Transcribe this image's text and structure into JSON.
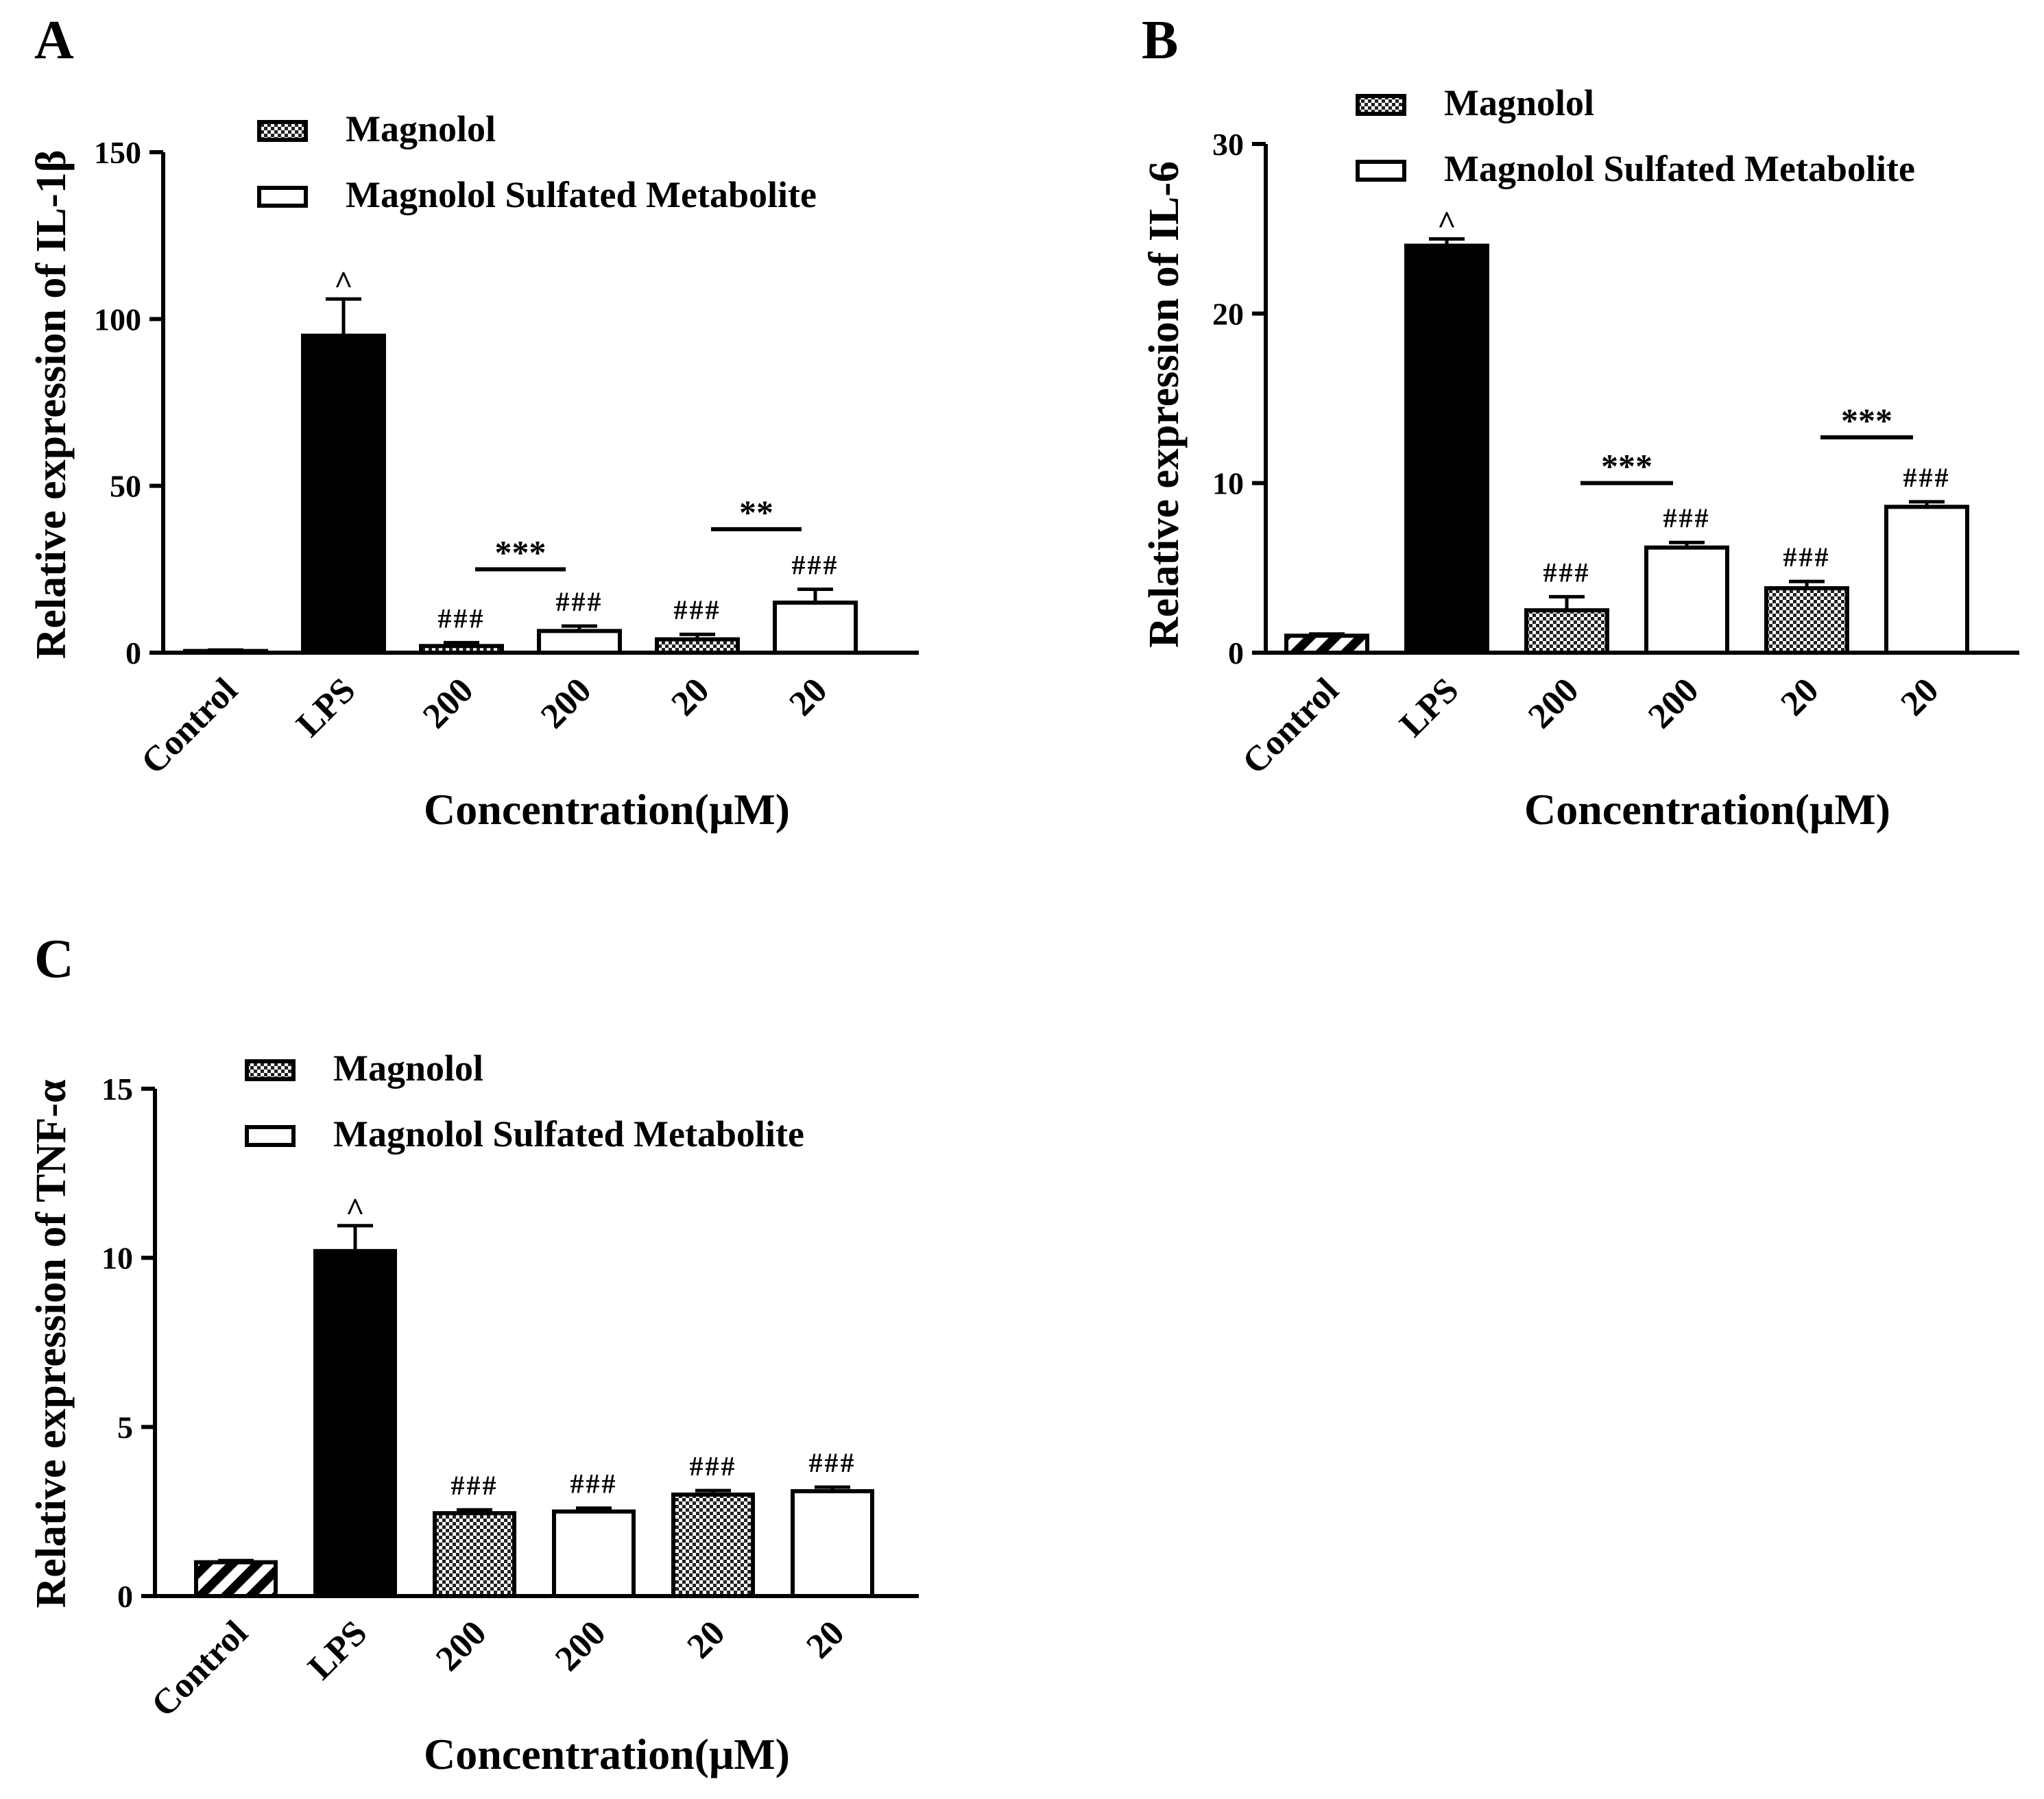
{
  "chart_data": [
    {
      "panel_label": "A",
      "type": "bar",
      "ylabel": "Relative expression of IL-1β",
      "xlabel": "Concentration(μM)",
      "ylim": [
        0,
        150
      ],
      "yticks": [
        "0",
        "50",
        "100",
        "150"
      ],
      "ytick_values": [
        0,
        50,
        100,
        150
      ],
      "categories": [
        "Control",
        "LPS",
        "200",
        "200",
        "20",
        "20"
      ],
      "values": [
        0.5,
        95,
        2,
        6.5,
        4,
        15
      ],
      "errors": [
        0.3,
        11,
        1,
        1.5,
        1.5,
        4
      ],
      "fills": [
        "hatch",
        "black",
        "check",
        "white",
        "check",
        "white"
      ],
      "annotations": [
        "",
        "^",
        "###",
        "###",
        "###",
        "###"
      ],
      "significance": [
        {
          "from": 2,
          "to": 3,
          "y": 25,
          "label": "***"
        },
        {
          "from": 4,
          "to": 5,
          "y": 37,
          "label": "**"
        }
      ],
      "legend": [
        {
          "label": "Magnolol",
          "fill": "check"
        },
        {
          "label": "Magnolol Sulfated Metabolite",
          "fill": "white"
        }
      ]
    },
    {
      "panel_label": "B",
      "type": "bar",
      "ylabel": "Relative expression of IL-6",
      "xlabel": "Concentration(μM)",
      "ylim": [
        0,
        30
      ],
      "yticks": [
        "0",
        "10",
        "20",
        "30"
      ],
      "ytick_values": [
        0,
        10,
        20,
        30
      ],
      "categories": [
        "Control",
        "LPS",
        "200",
        "200",
        "20",
        "20"
      ],
      "values": [
        1,
        24,
        2.5,
        6.2,
        3.8,
        8.6
      ],
      "errors": [
        0.1,
        0.4,
        0.8,
        0.3,
        0.4,
        0.3
      ],
      "fills": [
        "hatch",
        "black",
        "check",
        "white",
        "check",
        "white"
      ],
      "annotations": [
        "",
        "^",
        "###",
        "###",
        "###",
        "###"
      ],
      "significance": [
        {
          "from": 2,
          "to": 3,
          "y": 10,
          "label": "***"
        },
        {
          "from": 4,
          "to": 5,
          "y": 12.7,
          "label": "***"
        }
      ],
      "legend": [
        {
          "label": "Magnolol",
          "fill": "check"
        },
        {
          "label": "Magnolol Sulfated Metabolite",
          "fill": "white"
        }
      ]
    },
    {
      "panel_label": "C",
      "type": "bar",
      "ylabel": "Relative expression of TNF-α",
      "xlabel": "Concentration(μM)",
      "ylim": [
        0,
        15
      ],
      "yticks": [
        "0",
        "5",
        "10",
        "15"
      ],
      "ytick_values": [
        0,
        5,
        10,
        15
      ],
      "categories": [
        "Control",
        "LPS",
        "200",
        "200",
        "20",
        "20"
      ],
      "values": [
        1,
        10.2,
        2.45,
        2.5,
        3,
        3.1
      ],
      "errors": [
        0.05,
        0.75,
        0.1,
        0.1,
        0.12,
        0.12
      ],
      "fills": [
        "hatch",
        "black",
        "check",
        "white",
        "check",
        "white"
      ],
      "annotations": [
        "",
        "^",
        "###",
        "###",
        "###",
        "###"
      ],
      "significance": [],
      "legend": [
        {
          "label": "Magnolol",
          "fill": "check"
        },
        {
          "label": "Magnolol Sulfated Metabolite",
          "fill": "white"
        }
      ]
    }
  ]
}
